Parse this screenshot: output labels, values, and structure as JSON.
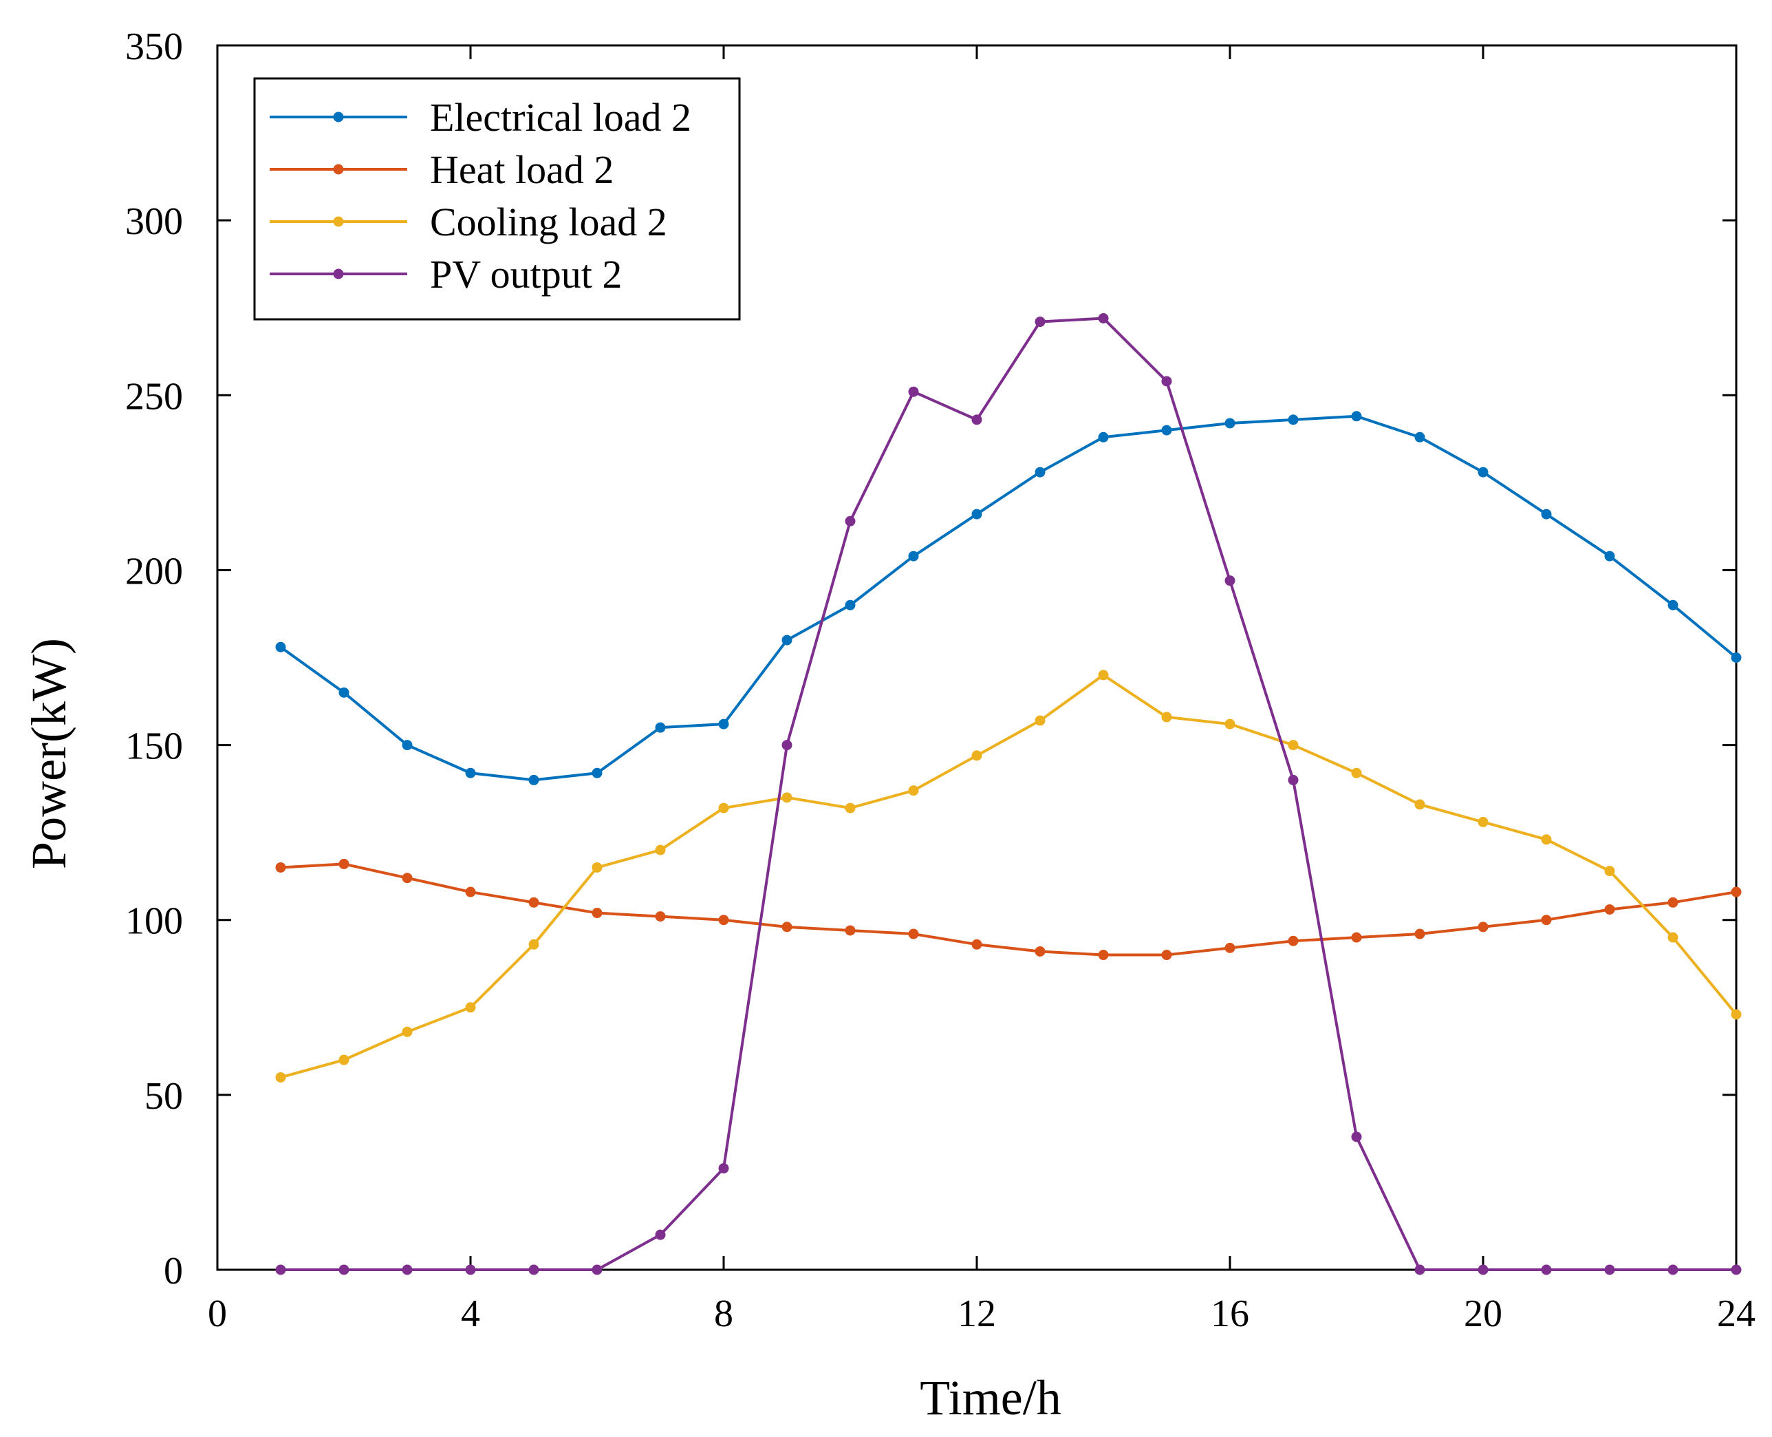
{
  "chart_data": {
    "type": "line",
    "title": "",
    "xlabel": "Time/h",
    "ylabel": "Power(kW)",
    "xlim": [
      0,
      24
    ],
    "ylim": [
      0,
      350
    ],
    "xticks": [
      "0",
      "4",
      "8",
      "12",
      "16",
      "20",
      "24"
    ],
    "yticks": [
      "0",
      "50",
      "100",
      "150",
      "200",
      "250",
      "300",
      "350"
    ],
    "grid": false,
    "legend_position": "top-left",
    "x": [
      1,
      2,
      3,
      4,
      5,
      6,
      7,
      8,
      9,
      10,
      11,
      12,
      13,
      14,
      15,
      16,
      17,
      18,
      19,
      20,
      21,
      22,
      23,
      24
    ],
    "series": [
      {
        "name": "Electrical load 2",
        "color": "#0072BD",
        "values": [
          178,
          165,
          150,
          142,
          140,
          142,
          155,
          156,
          180,
          190,
          204,
          216,
          228,
          238,
          240,
          242,
          243,
          244,
          238,
          228,
          216,
          204,
          190,
          175
        ]
      },
      {
        "name": "Heat load 2",
        "color": "#D95319",
        "values": [
          115,
          116,
          112,
          108,
          105,
          102,
          101,
          100,
          98,
          97,
          96,
          93,
          91,
          90,
          90,
          92,
          94,
          95,
          96,
          98,
          100,
          103,
          105,
          108
        ]
      },
      {
        "name": "Cooling load 2",
        "color": "#EDB120",
        "values": [
          55,
          60,
          68,
          75,
          93,
          115,
          120,
          132,
          135,
          132,
          137,
          147,
          157,
          170,
          158,
          156,
          150,
          142,
          133,
          128,
          123,
          114,
          95,
          73
        ]
      },
      {
        "name": "PV output 2",
        "color": "#7E2F8E",
        "values": [
          0,
          0,
          0,
          0,
          0,
          0,
          10,
          29,
          150,
          214,
          251,
          243,
          271,
          272,
          254,
          197,
          140,
          38,
          0,
          0,
          0,
          0,
          0,
          0
        ]
      }
    ]
  }
}
